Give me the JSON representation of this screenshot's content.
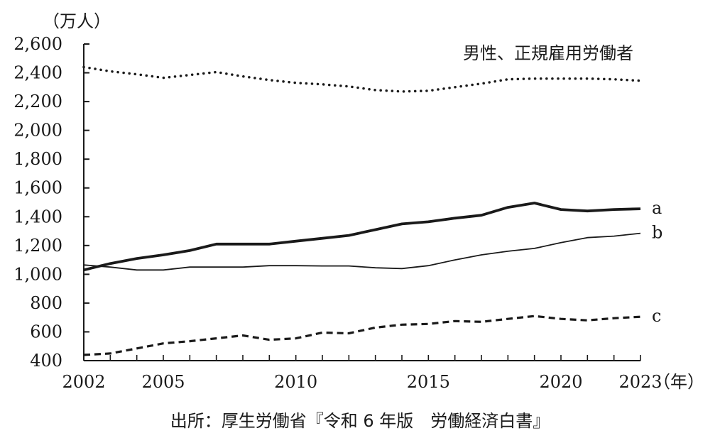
{
  "chart_data": {
    "type": "line",
    "title": "男性、正規雇用労働者",
    "y_unit_label": "（万人）",
    "x_unit_label": "（年）",
    "source": "出所：厚生労働省『令和 6 年版　労働経済白書』",
    "ylim": [
      400,
      2600
    ],
    "xlim": [
      2002,
      2023
    ],
    "grid": false,
    "x_tick_values": [
      2002,
      2005,
      2010,
      2015,
      2020,
      2023
    ],
    "x_tick_labels": [
      "2002",
      "2005",
      "2010",
      "2015",
      "2020",
      "2023"
    ],
    "y_tick_values": [
      400,
      600,
      800,
      1000,
      1200,
      1400,
      1600,
      1800,
      2000,
      2200,
      2400,
      2600
    ],
    "y_tick_labels": [
      "400",
      "600",
      "800",
      "1,000",
      "1,200",
      "1,400",
      "1,600",
      "1,800",
      "2,000",
      "2,200",
      "2,400",
      "2,600"
    ],
    "x": [
      2002,
      2003,
      2004,
      2005,
      2006,
      2007,
      2008,
      2009,
      2010,
      2011,
      2012,
      2013,
      2014,
      2015,
      2016,
      2017,
      2018,
      2019,
      2020,
      2021,
      2022,
      2023
    ],
    "series": [
      {
        "name": "",
        "style": "dotted",
        "values": [
          2440,
          2410,
          2390,
          2365,
          2385,
          2405,
          2375,
          2350,
          2330,
          2320,
          2305,
          2280,
          2270,
          2275,
          2300,
          2325,
          2355,
          2360,
          2360,
          2360,
          2355,
          2345
        ]
      },
      {
        "name": "a",
        "style": "thick",
        "values": [
          1030,
          1075,
          1110,
          1135,
          1165,
          1210,
          1210,
          1210,
          1230,
          1250,
          1270,
          1310,
          1350,
          1365,
          1390,
          1410,
          1465,
          1495,
          1450,
          1440,
          1450,
          1455
        ]
      },
      {
        "name": "b",
        "style": "thin",
        "values": [
          1065,
          1050,
          1030,
          1030,
          1050,
          1050,
          1050,
          1060,
          1060,
          1058,
          1058,
          1045,
          1040,
          1060,
          1100,
          1135,
          1160,
          1180,
          1220,
          1255,
          1265,
          1285
        ]
      },
      {
        "name": "c",
        "style": "dashed",
        "values": [
          440,
          450,
          485,
          520,
          535,
          555,
          575,
          545,
          555,
          595,
          590,
          630,
          650,
          655,
          675,
          670,
          690,
          710,
          690,
          680,
          695,
          705
        ]
      }
    ],
    "colors": {
      "line": "#1a1a1a",
      "text": "#1a1a1a",
      "background": "#ffffff"
    }
  }
}
